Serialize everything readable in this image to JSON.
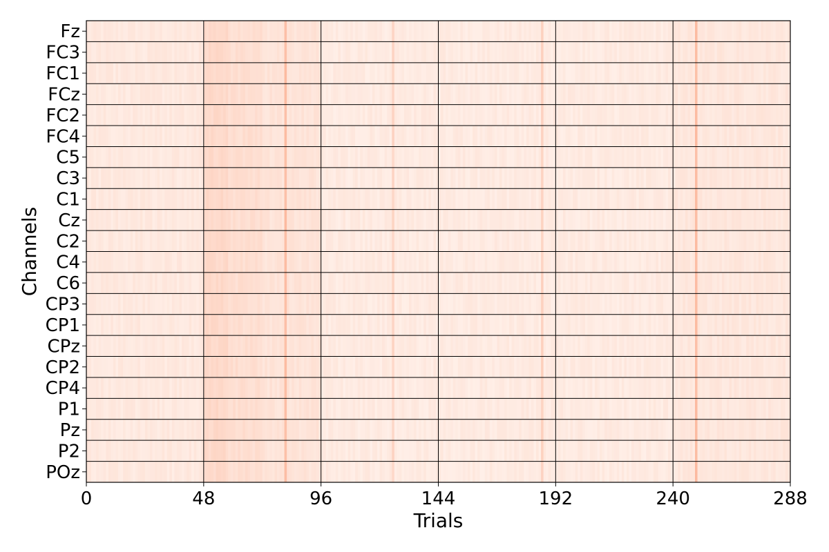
{
  "chart_data": {
    "type": "heatmap",
    "title": "",
    "xlabel": "Trials",
    "ylabel": "Channels",
    "xlim": [
      0,
      288
    ],
    "xticks": [
      0,
      48,
      96,
      144,
      192,
      240,
      288
    ],
    "channels": [
      "Fz",
      "FC3",
      "FC1",
      "FCz",
      "FC2",
      "FC4",
      "C5",
      "C3",
      "C1",
      "Cz",
      "C2",
      "C4",
      "C6",
      "CP3",
      "CP1",
      "CPz",
      "CP2",
      "CP4",
      "P1",
      "Pz",
      "P2",
      "POz"
    ],
    "colormap": [
      "#fff5f0",
      "#fcbba1",
      "#fb6a4a",
      "#cb181d"
    ],
    "value_range": [
      0,
      1
    ],
    "baseline_intensity": 0.07,
    "segment_intensity": [
      {
        "from": 48,
        "to": 58,
        "value": 0.16
      },
      {
        "from": 58,
        "to": 72,
        "value": 0.13
      },
      {
        "from": 72,
        "to": 96,
        "value": 0.1
      },
      {
        "from": 96,
        "to": 240,
        "value": 0.06
      },
      {
        "from": 240,
        "to": 288,
        "value": 0.08
      }
    ],
    "highlighted_trials": [
      {
        "trial": 81,
        "value": 0.32
      },
      {
        "trial": 125,
        "value": 0.18
      },
      {
        "trial": 186,
        "value": 0.2
      },
      {
        "trial": 249,
        "value": 0.32
      }
    ],
    "grid": true
  }
}
